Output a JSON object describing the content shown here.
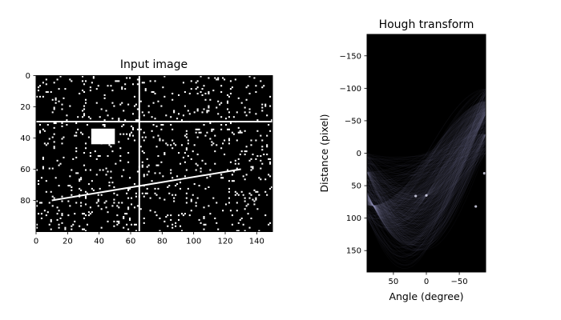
{
  "chart_data": [
    {
      "type": "heatmap",
      "title": "Input image",
      "xlabel": "",
      "ylabel": "",
      "xlim": [
        0,
        150
      ],
      "ylim": [
        100,
        0
      ],
      "x_ticks": [
        "0",
        "20",
        "40",
        "60",
        "80",
        "100",
        "120",
        "140"
      ],
      "y_ticks": [
        "0",
        "20",
        "40",
        "60",
        "80"
      ],
      "colormap": "gray",
      "content": {
        "horizontal_line_y": 29,
        "vertical_line_x": 65,
        "rectangle": {
          "x0": 35,
          "x1": 50,
          "y0": 34,
          "y1": 44
        },
        "oblique_line": {
          "x": [
            10,
            130
          ],
          "y": [
            80,
            60
          ]
        },
        "noise_density": 0.05
      }
    },
    {
      "type": "heatmap",
      "title": "Hough transform",
      "xlabel": "Angle (degree)",
      "ylabel": "Distance (pixel)",
      "xlim": [
        90,
        -90
      ],
      "ylim": [
        -183,
        183
      ],
      "x_ticks": [
        "50",
        "0",
        "−50"
      ],
      "y_ticks": [
        "−150",
        "−100",
        "−50",
        "0",
        "50",
        "100",
        "150"
      ],
      "colormap": "bone"
    }
  ]
}
